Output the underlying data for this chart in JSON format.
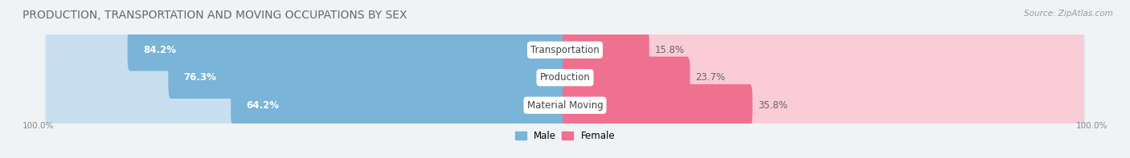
{
  "title": "PRODUCTION, TRANSPORTATION AND MOVING OCCUPATIONS BY SEX",
  "source": "Source: ZipAtlas.com",
  "categories": [
    "Transportation",
    "Production",
    "Material Moving"
  ],
  "male_pct": [
    84.2,
    76.3,
    64.2
  ],
  "female_pct": [
    15.8,
    23.7,
    35.8
  ],
  "male_color": "#7ab4d8",
  "female_color": "#f07090",
  "male_light_color": "#c8dff0",
  "female_light_color": "#f9ccd8",
  "row_bg_color": "#e8ecf0",
  "fig_bg_color": "#f0f3f6",
  "title_color": "#666666",
  "source_color": "#999999",
  "label_color_inside": "#ffffff",
  "label_color_outside": "#666666",
  "cat_label_color": "#444444",
  "title_fontsize": 10,
  "source_fontsize": 7.5,
  "bar_label_fontsize": 8.5,
  "cat_label_fontsize": 8.5,
  "bar_height": 0.52,
  "legend_male": "Male",
  "legend_female": "Female",
  "axis_label_left": "100.0%",
  "axis_label_right": "100.0%",
  "xlim": [
    -105,
    105
  ],
  "ylim_bottom": -0.65,
  "ylim_top": 2.55
}
